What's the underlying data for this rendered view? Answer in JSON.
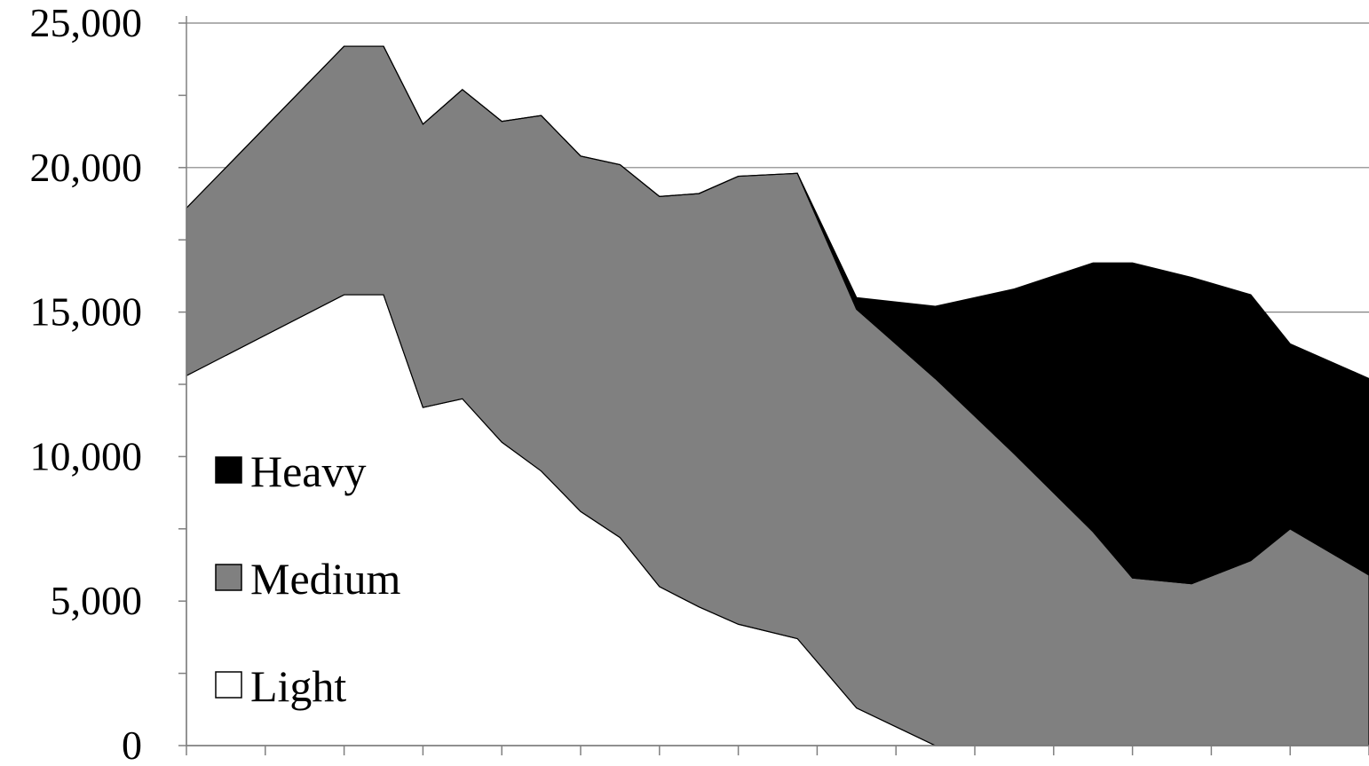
{
  "chart_data": {
    "type": "area",
    "stacked": true,
    "title": "",
    "xlabel": "",
    "ylabel": "",
    "ylim": [
      0,
      25000
    ],
    "yticks": [
      0,
      5000,
      10000,
      15000,
      20000,
      25000
    ],
    "ytick_labels": [
      "0",
      "5,000",
      "10,000",
      "15,000",
      "20,000",
      "25,000"
    ],
    "xtick_labels_visible": false,
    "xlim": [
      0,
      15
    ],
    "xticks": [
      0,
      1,
      2,
      3,
      4,
      5,
      6,
      7,
      8,
      9,
      10,
      11,
      12,
      13,
      14,
      15
    ],
    "grid": {
      "horizontal": true,
      "vertical": false,
      "color": "#808080"
    },
    "legend": {
      "placement": "lower-left",
      "order": [
        "Heavy",
        "Medium",
        "Light"
      ]
    },
    "x": [
      0,
      2,
      2.5,
      3,
      3.5,
      4,
      4.5,
      5,
      5.5,
      6,
      6.5,
      7,
      7.75,
      8.5,
      9.5,
      10.5,
      11.5,
      12,
      12.75,
      13.5,
      14,
      15
    ],
    "series": [
      {
        "name": "Light",
        "color": "#ffffff",
        "values": [
          12800,
          15600,
          15600,
          11700,
          12000,
          10500,
          9500,
          8100,
          7200,
          5500,
          4800,
          4200,
          3700,
          1300,
          0,
          0,
          0,
          0,
          0,
          0,
          0,
          0
        ]
      },
      {
        "name": "Medium",
        "color": "#808080",
        "values": [
          5800,
          8600,
          8600,
          9800,
          10700,
          11100,
          12300,
          12300,
          12900,
          13500,
          14300,
          15500,
          16100,
          13800,
          12700,
          10100,
          7400,
          5800,
          5600,
          6400,
          7500,
          5900
        ]
      },
      {
        "name": "Heavy",
        "color": "#000000",
        "values": [
          0,
          0,
          0,
          0,
          0,
          0,
          0,
          0,
          0,
          0,
          0,
          0,
          0,
          400,
          2500,
          5700,
          9300,
          10900,
          10600,
          9200,
          6400,
          6800
        ]
      }
    ]
  }
}
